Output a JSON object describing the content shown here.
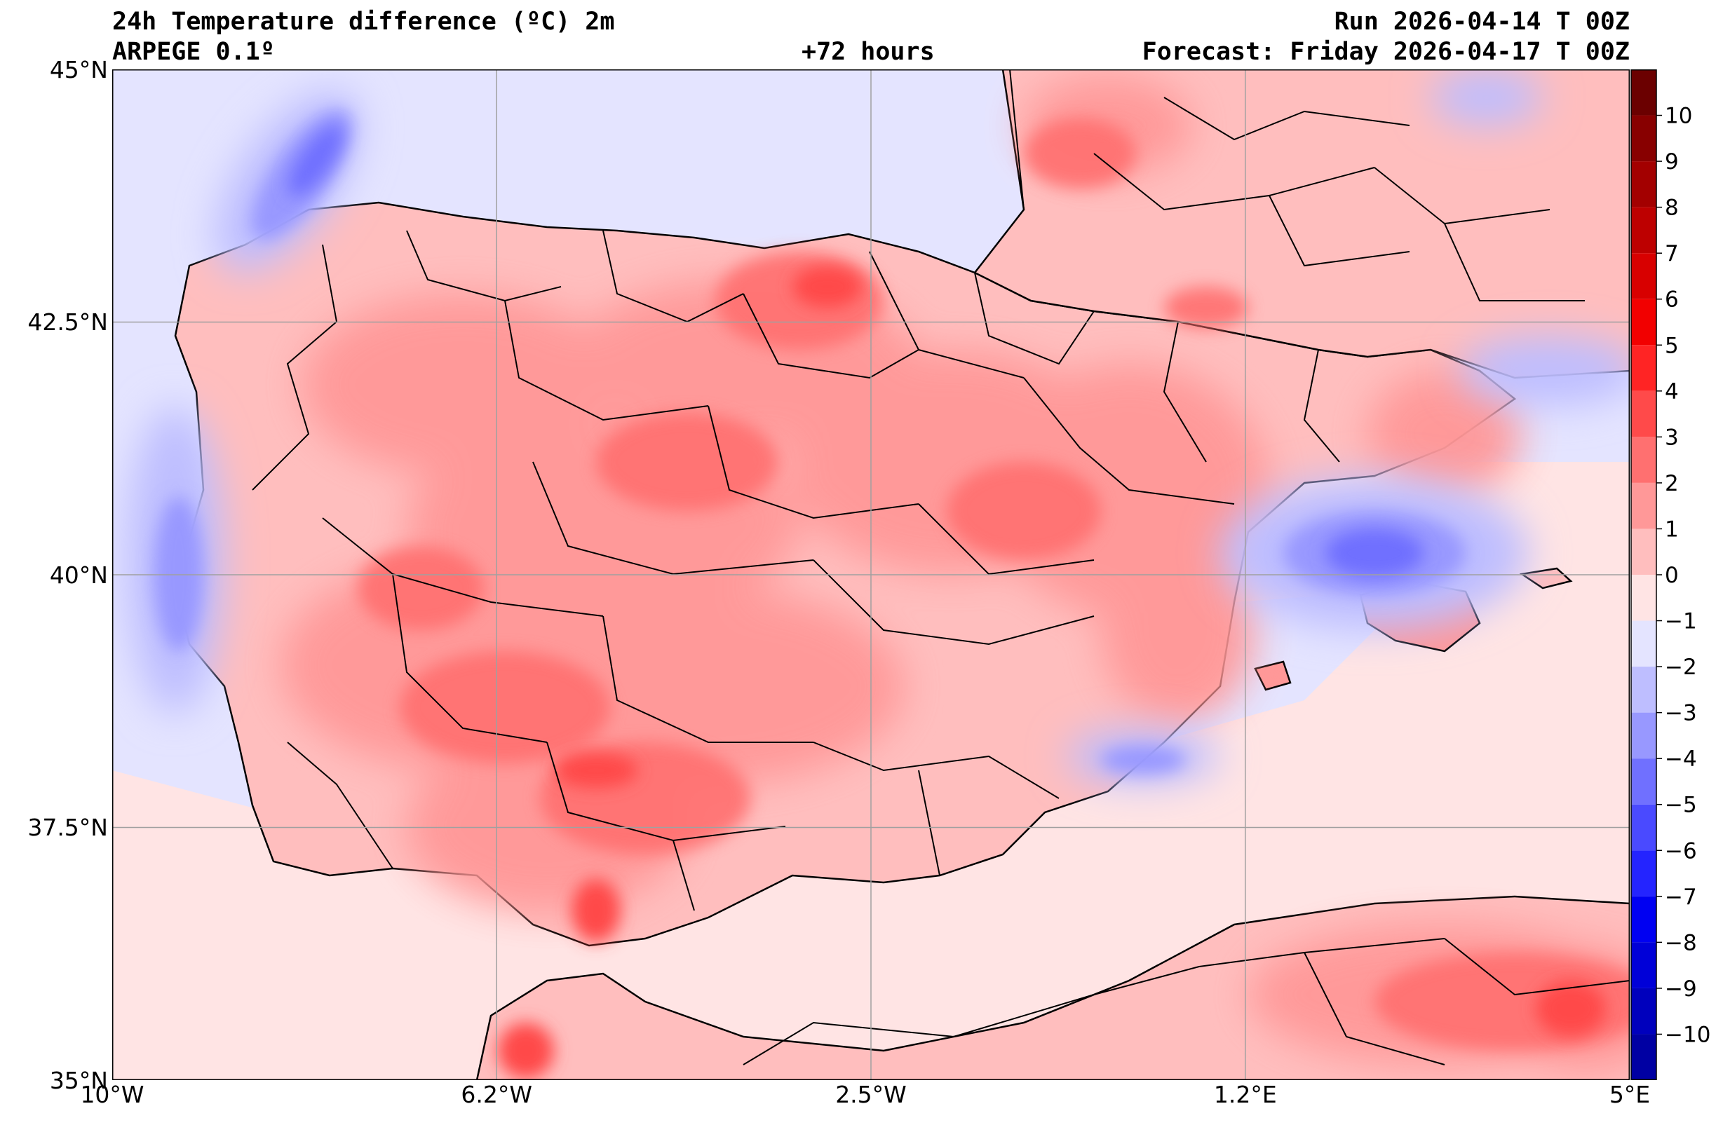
{
  "header": {
    "title": "24h Temperature difference (ºC) 2m",
    "model": "ARPEGE 0.1º",
    "lead": "+72 hours",
    "run": "Run 2026-04-14 T 00Z",
    "forecast": "Forecast: Friday 2026-04-17 T 00Z"
  },
  "map": {
    "region": "Iberian Peninsula",
    "lon_range": [
      -10,
      5
    ],
    "lat_range": [
      35,
      45
    ],
    "lon_ticks": [
      {
        "value": -10,
        "label": "10°W"
      },
      {
        "value": -6.2,
        "label": "6.2°W"
      },
      {
        "value": -2.5,
        "label": "2.5°W"
      },
      {
        "value": 1.2,
        "label": "1.2°E"
      },
      {
        "value": 5,
        "label": "5°E"
      }
    ],
    "lat_ticks": [
      {
        "value": 45,
        "label": "45°N"
      },
      {
        "value": 42.5,
        "label": "42.5°N"
      },
      {
        "value": 40,
        "label": "40°N"
      },
      {
        "value": 37.5,
        "label": "37.5°N"
      },
      {
        "value": 35,
        "label": "35°N"
      }
    ],
    "grid": true
  },
  "colorbar": {
    "min": -11,
    "max": 11,
    "levels": [
      10,
      9,
      8,
      7,
      6,
      5,
      4,
      3,
      2,
      1,
      0,
      -1,
      -2,
      -3,
      -4,
      -5,
      -6,
      -7,
      -8,
      -9,
      -10
    ],
    "labels": [
      "10",
      "9",
      "8",
      "7",
      "6",
      "5",
      "4",
      "3",
      "2",
      "1",
      "0",
      "−1",
      "−2",
      "−3",
      "−4",
      "−5",
      "−6",
      "−7",
      "−8",
      "−9",
      "−10"
    ],
    "colors": [
      "#6b0000",
      "#880000",
      "#a30000",
      "#bd0000",
      "#d80000",
      "#f20000",
      "#ff2424",
      "#ff4a4a",
      "#ff7070",
      "#ff9898",
      "#ffbebe",
      "#ffe4e4",
      "#e4e4ff",
      "#bebeff",
      "#9898ff",
      "#7070ff",
      "#4a4aff",
      "#2424ff",
      "#0000f2",
      "#0000d8",
      "#0000bd",
      "#0000a3",
      "#000088",
      "#00006b"
    ]
  }
}
